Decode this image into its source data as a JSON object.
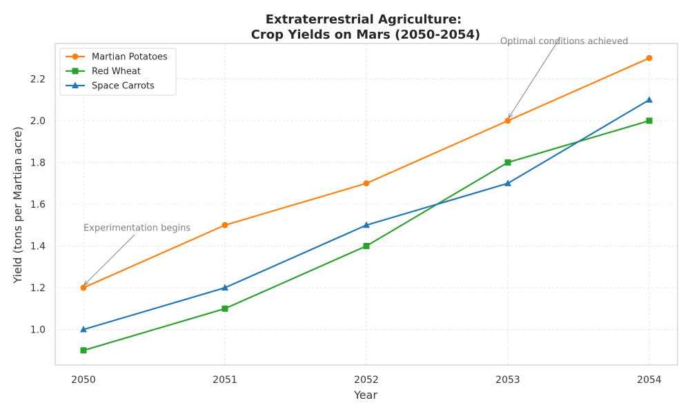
{
  "chart_data": {
    "type": "line",
    "title_lines": [
      "Extraterrestrial Agriculture:",
      "Crop Yields on Mars (2050-2054)"
    ],
    "xlabel": "Year",
    "ylabel": "Yield (tons per Martian acre)",
    "x": [
      2050,
      2051,
      2052,
      2053,
      2054
    ],
    "x_tick_labels": [
      "2050",
      "2051",
      "2052",
      "2053",
      "2054"
    ],
    "y_ticks": [
      1.0,
      1.2,
      1.4,
      1.6,
      1.8,
      2.0,
      2.2
    ],
    "y_tick_labels": [
      "1.0",
      "1.2",
      "1.4",
      "1.6",
      "1.8",
      "2.0",
      "2.2"
    ],
    "ylim": [
      0.83,
      2.37
    ],
    "xlim": [
      2049.8,
      2054.2
    ],
    "grid": true,
    "legend_position": "top-left",
    "series": [
      {
        "name": "Martian Potatoes",
        "color": "#ff7f0e",
        "marker": "circle",
        "values": [
          1.2,
          1.5,
          1.7,
          2.0,
          2.3
        ]
      },
      {
        "name": "Red Wheat",
        "color": "#2ca02c",
        "marker": "square",
        "values": [
          0.9,
          1.1,
          1.4,
          1.8,
          2.0
        ]
      },
      {
        "name": "Space Carrots",
        "color": "#1f77b4",
        "marker": "triangle",
        "values": [
          1.0,
          1.2,
          1.5,
          1.7,
          2.1
        ]
      }
    ],
    "annotations": [
      {
        "text": "Experimentation begins",
        "target_x": 2050,
        "target_y": 1.2,
        "text_x": 2050,
        "text_y": 1.5
      },
      {
        "text": "Optimal conditions achieved",
        "target_x": 2053,
        "target_y": 2.0,
        "text_x": 2053.2,
        "text_y": 2.4
      }
    ]
  }
}
